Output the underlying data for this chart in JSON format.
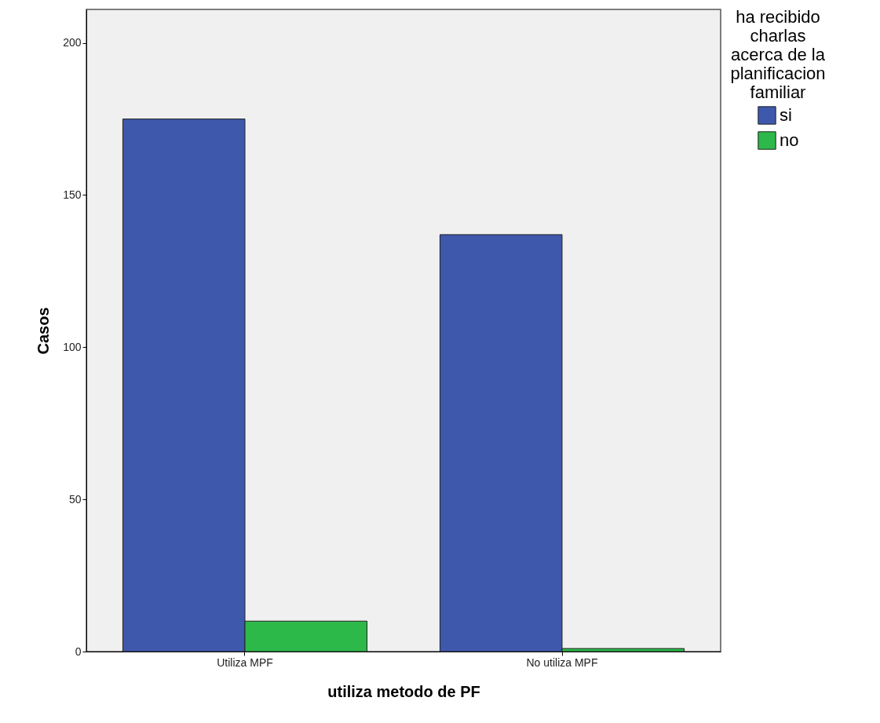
{
  "chart_data": {
    "type": "bar",
    "xlabel": "utiliza metodo de PF",
    "ylabel": "Casos",
    "legend_title": "ha recibido charlas acerca de la planificacion familiar",
    "categories": [
      "Utiliza MPF",
      "No utiliza MPF"
    ],
    "series": [
      {
        "name": "si",
        "color": "#3e58ac",
        "values": [
          175,
          137
        ]
      },
      {
        "name": "no",
        "color": "#2db84a",
        "values": [
          10,
          1
        ]
      }
    ],
    "ylim": [
      0,
      211
    ],
    "yticks": [
      0,
      50,
      100,
      150,
      200
    ],
    "grid": false,
    "legend": "top right"
  }
}
